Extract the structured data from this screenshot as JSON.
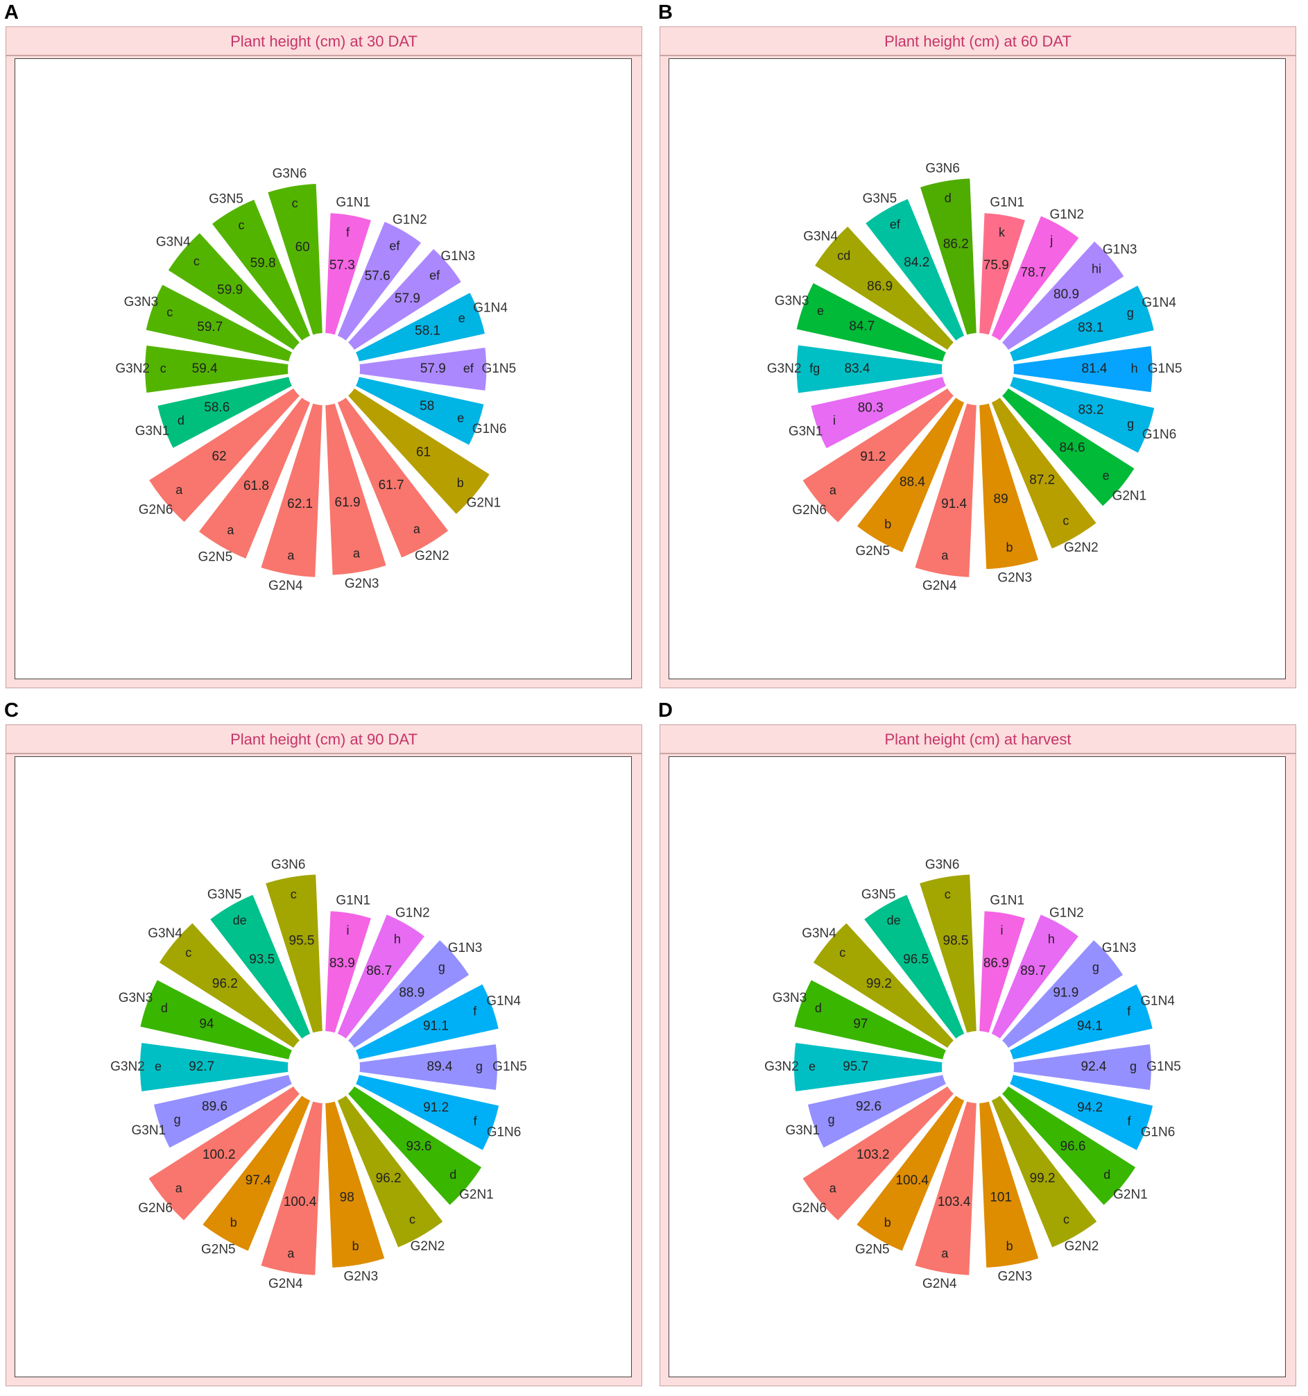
{
  "panels": [
    {
      "letter": "A",
      "title": "Plant height (cm) at 30 DAT"
    },
    {
      "letter": "B",
      "title": "Plant height (cm) at 60 DAT"
    },
    {
      "letter": "C",
      "title": "Plant height (cm) at 90 DAT"
    },
    {
      "letter": "D",
      "title": "Plant height (cm) at harvest"
    }
  ],
  "chart_data": [
    {
      "type": "bar",
      "polar": true,
      "title": "Plant height (cm) at 30 DAT",
      "categories": [
        "G1N1",
        "G1N2",
        "G1N3",
        "G1N4",
        "G1N5",
        "G1N6",
        "G2N1",
        "G2N2",
        "G2N3",
        "G2N4",
        "G2N5",
        "G2N6",
        "G3N1",
        "G3N2",
        "G3N3",
        "G3N4",
        "G3N5",
        "G3N6"
      ],
      "values": [
        57.3,
        57.6,
        57.9,
        58.1,
        57.9,
        58,
        61,
        61.7,
        61.9,
        62.1,
        61.8,
        62,
        58.6,
        59.4,
        59.7,
        59.9,
        59.8,
        60
      ],
      "value_labels": [
        "57.3",
        "57.6",
        "57.9",
        "58.1",
        "57.9",
        "58",
        "61",
        "61.7",
        "61.9",
        "62.1",
        "61.8",
        "62",
        "58.6",
        "59.4",
        "59.7",
        "59.9",
        "59.8",
        "60"
      ],
      "letters": [
        "f",
        "ef",
        "ef",
        "e",
        "ef",
        "e",
        "b",
        "a",
        "a",
        "a",
        "a",
        "a",
        "d",
        "c",
        "c",
        "c",
        "c",
        "c"
      ],
      "colors": [
        "#f564e3",
        "#ac88ff",
        "#ac88ff",
        "#00b4e4",
        "#ac88ff",
        "#00b4e4",
        "#b79f00",
        "#f8766d",
        "#f8766d",
        "#f8766d",
        "#f8766d",
        "#f8766d",
        "#00bf7d",
        "#53b400",
        "#53b400",
        "#53b400",
        "#53b400",
        "#53b400"
      ]
    },
    {
      "type": "bar",
      "polar": true,
      "title": "Plant height (cm) at 60 DAT",
      "categories": [
        "G1N1",
        "G1N2",
        "G1N3",
        "G1N4",
        "G1N5",
        "G1N6",
        "G2N1",
        "G2N2",
        "G2N3",
        "G2N4",
        "G2N5",
        "G2N6",
        "G3N1",
        "G3N2",
        "G3N3",
        "G3N4",
        "G3N5",
        "G3N6"
      ],
      "values": [
        75.9,
        78.7,
        80.9,
        83.1,
        81.4,
        83.2,
        84.6,
        87.2,
        89,
        91.4,
        88.4,
        91.2,
        80.3,
        83.4,
        84.7,
        86.9,
        84.2,
        86.2
      ],
      "value_labels": [
        "75.9",
        "78.7",
        "80.9",
        "83.1",
        "81.4",
        "83.2",
        "84.6",
        "87.2",
        "89",
        "91.4",
        "88.4",
        "91.2",
        "80.3",
        "83.4",
        "84.7",
        "86.9",
        "84.2",
        "86.2"
      ],
      "letters": [
        "k",
        "j",
        "hi",
        "g",
        "h",
        "g",
        "e",
        "c",
        "b",
        "a",
        "b",
        "a",
        "i",
        "fg",
        "e",
        "cd",
        "ef",
        "d"
      ],
      "colors": [
        "#fe6e8a",
        "#f564e3",
        "#ac88ff",
        "#00b4e4",
        "#06a4ff",
        "#00b4e4",
        "#00ba38",
        "#b79f00",
        "#de8c00",
        "#f8766d",
        "#de8c00",
        "#f8766d",
        "#e76bf3",
        "#00bfc4",
        "#00ba38",
        "#a3a500",
        "#00c19f",
        "#4fac00"
      ]
    },
    {
      "type": "bar",
      "polar": true,
      "title": "Plant height (cm) at 90 DAT",
      "categories": [
        "G1N1",
        "G1N2",
        "G1N3",
        "G1N4",
        "G1N5",
        "G1N6",
        "G2N1",
        "G2N2",
        "G2N3",
        "G2N4",
        "G2N5",
        "G2N6",
        "G3N1",
        "G3N2",
        "G3N3",
        "G3N4",
        "G3N5",
        "G3N6"
      ],
      "values": [
        83.9,
        86.7,
        88.9,
        91.1,
        89.4,
        91.2,
        93.6,
        96.2,
        98,
        100.4,
        97.4,
        100.2,
        89.6,
        92.7,
        94,
        96.2,
        93.5,
        95.5
      ],
      "value_labels": [
        "83.9",
        "86.7",
        "88.9",
        "91.1",
        "89.4",
        "91.2",
        "93.6",
        "96.2",
        "98",
        "100.4",
        "97.4",
        "100.2",
        "89.6",
        "92.7",
        "94",
        "96.2",
        "93.5",
        "95.5"
      ],
      "letters": [
        "i",
        "h",
        "g",
        "f",
        "g",
        "f",
        "d",
        "c",
        "b",
        "a",
        "b",
        "a",
        "g",
        "e",
        "d",
        "c",
        "de",
        "c"
      ],
      "colors": [
        "#f564e3",
        "#e76bf3",
        "#9590ff",
        "#00b0f6",
        "#9590ff",
        "#00b0f6",
        "#39b600",
        "#a3a500",
        "#de8c00",
        "#f8766d",
        "#de8c00",
        "#f8766d",
        "#9590ff",
        "#00bfc4",
        "#39b600",
        "#a3a500",
        "#00c08b",
        "#a3a500"
      ]
    },
    {
      "type": "bar",
      "polar": true,
      "title": "Plant height (cm) at harvest",
      "categories": [
        "G1N1",
        "G1N2",
        "G1N3",
        "G1N4",
        "G1N5",
        "G1N6",
        "G2N1",
        "G2N2",
        "G2N3",
        "G2N4",
        "G2N5",
        "G2N6",
        "G3N1",
        "G3N2",
        "G3N3",
        "G3N4",
        "G3N5",
        "G3N6"
      ],
      "values": [
        86.9,
        89.7,
        91.9,
        94.1,
        92.4,
        94.2,
        96.6,
        99.2,
        101,
        103.4,
        100.4,
        103.2,
        92.6,
        95.7,
        97,
        99.2,
        96.5,
        98.5
      ],
      "value_labels": [
        "86.9",
        "89.7",
        "91.9",
        "94.1",
        "92.4",
        "94.2",
        "96.6",
        "99.2",
        "101",
        "103.4",
        "100.4",
        "103.2",
        "92.6",
        "95.7",
        "97",
        "99.2",
        "96.5",
        "98.5"
      ],
      "letters": [
        "i",
        "h",
        "g",
        "f",
        "g",
        "f",
        "d",
        "c",
        "b",
        "a",
        "b",
        "a",
        "g",
        "e",
        "d",
        "c",
        "de",
        "c"
      ],
      "colors": [
        "#f564e3",
        "#e76bf3",
        "#9590ff",
        "#00b0f6",
        "#9590ff",
        "#00b0f6",
        "#39b600",
        "#a3a500",
        "#de8c00",
        "#f8766d",
        "#de8c00",
        "#f8766d",
        "#9590ff",
        "#00bfc4",
        "#39b600",
        "#a3a500",
        "#00c08b",
        "#a3a500"
      ]
    }
  ]
}
